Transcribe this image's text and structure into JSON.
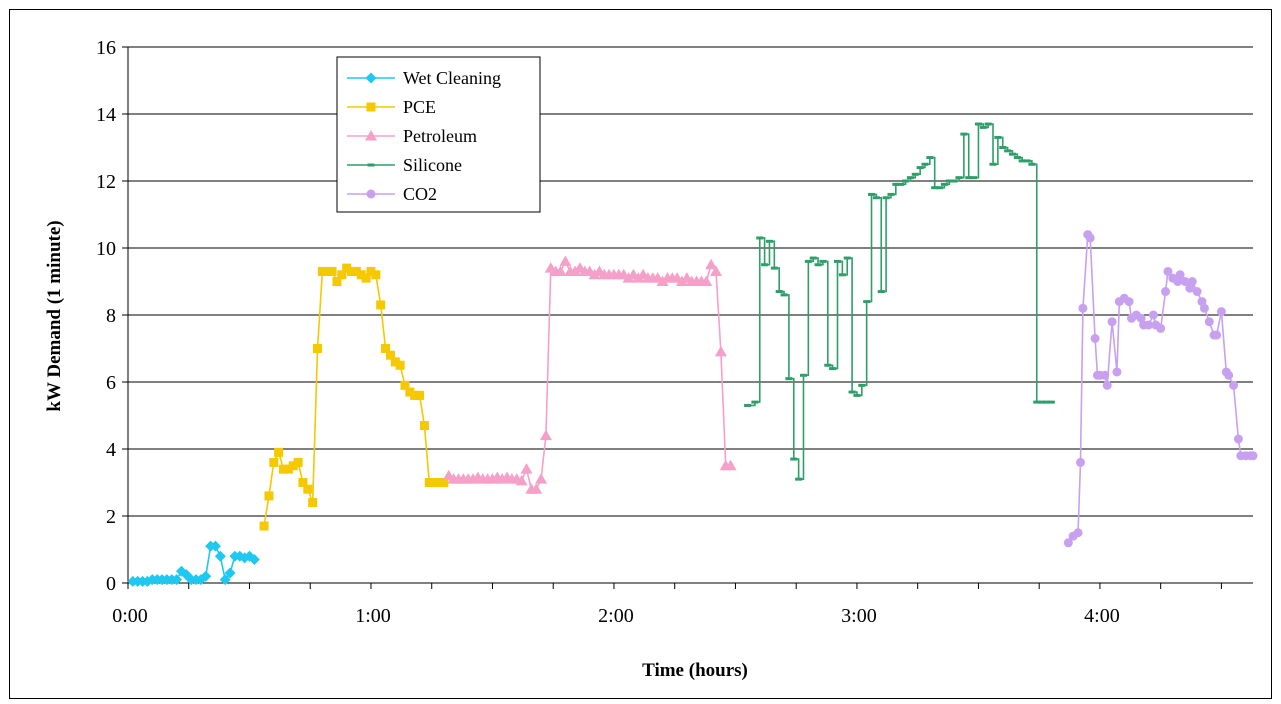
{
  "chart_data": {
    "type": "line",
    "title": "",
    "xlabel": "Time (hours)",
    "ylabel": "kW Demand (1 minute)",
    "xlim": [
      0,
      4.63
    ],
    "ylim": [
      0,
      16
    ],
    "grid": "horizontal",
    "legend_placement": "top-left",
    "x_ticks": [
      {
        "value": 0,
        "label": "0:00"
      },
      {
        "value": 1,
        "label": "1:00"
      },
      {
        "value": 2,
        "label": "2:00"
      },
      {
        "value": 3,
        "label": "3:00"
      },
      {
        "value": 4,
        "label": "4:00"
      }
    ],
    "y_ticks": [
      {
        "value": 0,
        "label": "0"
      },
      {
        "value": 2,
        "label": "2"
      },
      {
        "value": 4,
        "label": "4"
      },
      {
        "value": 6,
        "label": "6"
      },
      {
        "value": 8,
        "label": "8"
      },
      {
        "value": 10,
        "label": "10"
      },
      {
        "value": 12,
        "label": "12"
      },
      {
        "value": 14,
        "label": "14"
      },
      {
        "value": 16,
        "label": "16"
      }
    ],
    "series": [
      {
        "name": "Wet Cleaning",
        "color": "#1ec8f0",
        "marker": "diamond",
        "x": [
          0.02,
          0.04,
          0.06,
          0.08,
          0.1,
          0.12,
          0.14,
          0.16,
          0.18,
          0.2,
          0.22,
          0.24,
          0.26,
          0.28,
          0.3,
          0.32,
          0.34,
          0.36,
          0.38,
          0.4,
          0.42,
          0.44,
          0.46,
          0.48,
          0.5,
          0.52
        ],
        "y": [
          0.05,
          0.05,
          0.05,
          0.05,
          0.1,
          0.1,
          0.1,
          0.1,
          0.1,
          0.1,
          0.35,
          0.25,
          0.1,
          0.1,
          0.1,
          0.2,
          1.1,
          1.1,
          0.8,
          0.1,
          0.3,
          0.8,
          0.8,
          0.75,
          0.8,
          0.7
        ]
      },
      {
        "name": "PCE",
        "color": "#f5c800",
        "marker": "square",
        "x": [
          0.56,
          0.58,
          0.6,
          0.62,
          0.64,
          0.66,
          0.68,
          0.7,
          0.72,
          0.74,
          0.76,
          0.78,
          0.8,
          0.82,
          0.84,
          0.86,
          0.88,
          0.9,
          0.92,
          0.94,
          0.96,
          0.98,
          1.0,
          1.02,
          1.04,
          1.06,
          1.08,
          1.1,
          1.12,
          1.14,
          1.16,
          1.18,
          1.2,
          1.22,
          1.24,
          1.26,
          1.28,
          1.3
        ],
        "y": [
          1.7,
          2.6,
          3.6,
          3.9,
          3.4,
          3.4,
          3.5,
          3.6,
          3.0,
          2.8,
          2.4,
          7.0,
          9.3,
          9.3,
          9.3,
          9.0,
          9.2,
          9.4,
          9.3,
          9.3,
          9.2,
          9.1,
          9.3,
          9.2,
          8.3,
          7.0,
          6.8,
          6.6,
          6.5,
          5.9,
          5.7,
          5.6,
          5.6,
          4.7,
          3.0,
          3.0,
          3.0,
          3.0
        ]
      },
      {
        "name": "Petroleum",
        "color": "#f5a0c8",
        "marker": "triangle",
        "x": [
          1.32,
          1.34,
          1.36,
          1.38,
          1.4,
          1.42,
          1.44,
          1.46,
          1.48,
          1.5,
          1.52,
          1.54,
          1.56,
          1.58,
          1.6,
          1.62,
          1.64,
          1.66,
          1.68,
          1.7,
          1.72,
          1.74,
          1.76,
          1.78,
          1.8,
          1.82,
          1.84,
          1.86,
          1.88,
          1.9,
          1.92,
          1.94,
          1.96,
          1.98,
          2.0,
          2.02,
          2.04,
          2.06,
          2.08,
          2.1,
          2.12,
          2.14,
          2.16,
          2.18,
          2.2,
          2.22,
          2.24,
          2.26,
          2.28,
          2.3,
          2.32,
          2.34,
          2.36,
          2.38,
          2.4,
          2.42,
          2.44,
          2.46,
          2.48
        ],
        "y": [
          3.2,
          3.1,
          3.1,
          3.1,
          3.1,
          3.1,
          3.15,
          3.1,
          3.1,
          3.1,
          3.15,
          3.1,
          3.15,
          3.1,
          3.1,
          3.05,
          3.4,
          2.8,
          2.8,
          3.1,
          4.4,
          9.4,
          9.3,
          9.3,
          9.6,
          9.3,
          9.3,
          9.4,
          9.3,
          9.3,
          9.2,
          9.3,
          9.2,
          9.2,
          9.2,
          9.2,
          9.2,
          9.1,
          9.2,
          9.1,
          9.2,
          9.1,
          9.1,
          9.1,
          9.0,
          9.1,
          9.1,
          9.1,
          9.0,
          9.1,
          9.0,
          9.0,
          9.0,
          9.0,
          9.5,
          9.3,
          6.9,
          3.5,
          3.5
        ]
      },
      {
        "name": "Silicone",
        "color": "#2e9e6a",
        "marker": "dash",
        "step": true,
        "x": [
          2.55,
          2.58,
          2.6,
          2.62,
          2.64,
          2.66,
          2.68,
          2.7,
          2.72,
          2.74,
          2.76,
          2.78,
          2.8,
          2.82,
          2.84,
          2.86,
          2.88,
          2.9,
          2.92,
          2.94,
          2.96,
          2.98,
          3.0,
          3.02,
          3.04,
          3.06,
          3.08,
          3.1,
          3.12,
          3.14,
          3.16,
          3.18,
          3.2,
          3.22,
          3.24,
          3.26,
          3.28,
          3.3,
          3.32,
          3.34,
          3.36,
          3.38,
          3.4,
          3.42,
          3.44,
          3.46,
          3.48,
          3.5,
          3.52,
          3.54,
          3.56,
          3.58,
          3.6,
          3.62,
          3.64,
          3.66,
          3.68,
          3.7,
          3.72,
          3.74,
          3.76,
          3.78,
          3.8
        ],
        "y": [
          5.3,
          5.4,
          10.3,
          9.5,
          10.2,
          9.4,
          8.7,
          8.6,
          6.1,
          3.7,
          3.1,
          6.2,
          9.6,
          9.7,
          9.5,
          9.6,
          6.5,
          6.4,
          9.6,
          9.2,
          9.7,
          5.7,
          5.6,
          5.9,
          8.4,
          11.6,
          11.5,
          8.7,
          11.5,
          11.6,
          11.9,
          11.9,
          12.0,
          12.1,
          12.2,
          12.4,
          12.5,
          12.7,
          11.8,
          11.8,
          11.9,
          12.0,
          12.0,
          12.1,
          13.4,
          12.1,
          12.1,
          13.7,
          13.6,
          13.7,
          12.5,
          13.3,
          13.0,
          12.9,
          12.8,
          12.7,
          12.6,
          12.6,
          12.5,
          5.4,
          5.4,
          5.4,
          5.4
        ]
      },
      {
        "name": "CO2",
        "color": "#c8a0f0",
        "marker": "circle",
        "x": [
          3.87,
          3.89,
          3.91,
          3.92,
          3.93,
          3.95,
          3.96,
          3.98,
          3.99,
          4.0,
          4.02,
          4.03,
          4.05,
          4.07,
          4.08,
          4.1,
          4.12,
          4.13,
          4.15,
          4.17,
          4.18,
          4.2,
          4.22,
          4.23,
          4.25,
          4.27,
          4.28,
          4.3,
          4.32,
          4.33,
          4.35,
          4.37,
          4.38,
          4.4,
          4.42,
          4.43,
          4.45,
          4.47,
          4.48,
          4.5,
          4.52,
          4.53,
          4.55,
          4.57,
          4.58,
          4.6,
          4.62,
          4.63
        ],
        "y": [
          1.2,
          1.4,
          1.5,
          3.6,
          8.2,
          10.4,
          10.3,
          7.3,
          6.2,
          6.2,
          6.2,
          5.9,
          7.8,
          6.3,
          8.4,
          8.5,
          8.4,
          7.9,
          8.0,
          7.9,
          7.7,
          7.7,
          8.0,
          7.7,
          7.6,
          8.7,
          9.3,
          9.1,
          9.0,
          9.2,
          9.0,
          8.8,
          9.0,
          8.7,
          8.4,
          8.2,
          7.8,
          7.4,
          7.4,
          8.1,
          6.3,
          6.2,
          5.9,
          4.3,
          3.8,
          3.8,
          3.8,
          3.8
        ]
      }
    ]
  }
}
